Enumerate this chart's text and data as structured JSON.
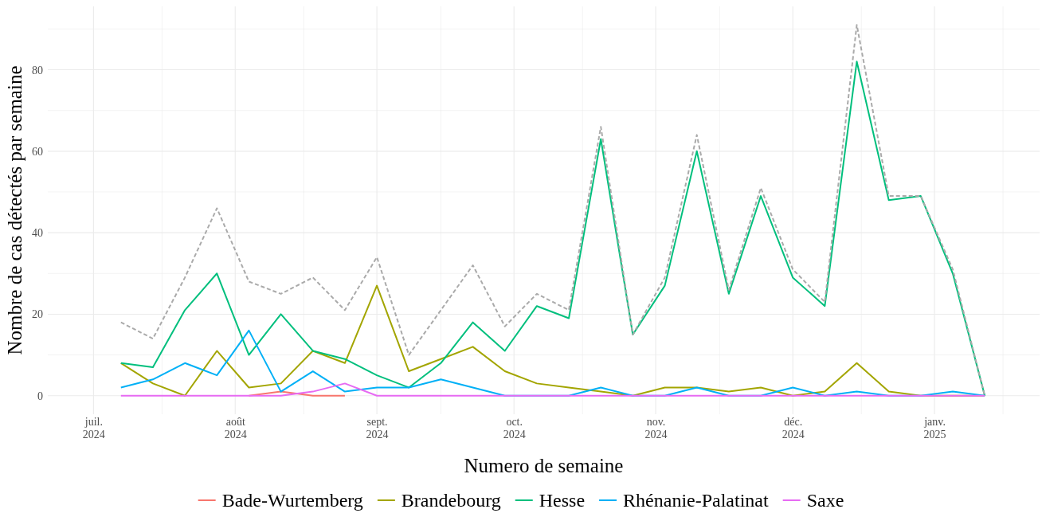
{
  "chart_data": {
    "type": "line",
    "xlabel": "Numero de semaine",
    "ylabel": "Nombre de cas détectés par semaine",
    "x": [
      "2024-07-07",
      "2024-07-14",
      "2024-07-21",
      "2024-07-28",
      "2024-08-04",
      "2024-08-11",
      "2024-08-18",
      "2024-08-25",
      "2024-09-01",
      "2024-09-08",
      "2024-09-15",
      "2024-09-22",
      "2024-09-29",
      "2024-10-06",
      "2024-10-13",
      "2024-10-20",
      "2024-10-27",
      "2024-11-03",
      "2024-11-10",
      "2024-11-17",
      "2024-11-24",
      "2024-12-01",
      "2024-12-08",
      "2024-12-15",
      "2024-12-22",
      "2024-12-29",
      "2025-01-05",
      "2025-01-12"
    ],
    "series": [
      {
        "name": "Bade-Wurtemberg",
        "color": "#f8766d",
        "values": [
          null,
          null,
          null,
          null,
          0,
          1,
          0,
          0,
          null,
          null,
          null,
          null,
          null,
          null,
          null,
          null,
          null,
          null,
          null,
          null,
          null,
          null,
          null,
          null,
          null,
          null,
          null,
          null
        ]
      },
      {
        "name": "Brandebourg",
        "color": "#a3a500",
        "values": [
          8,
          3,
          0,
          11,
          2,
          3,
          11,
          8,
          27,
          6,
          9,
          12,
          6,
          3,
          2,
          1,
          0,
          2,
          2,
          1,
          2,
          0,
          1,
          8,
          1,
          0,
          0,
          0
        ]
      },
      {
        "name": "Hesse",
        "color": "#00bf7d",
        "values": [
          8,
          7,
          21,
          30,
          10,
          20,
          11,
          9,
          5,
          2,
          8,
          18,
          11,
          22,
          19,
          63,
          15,
          27,
          60,
          25,
          49,
          29,
          22,
          82,
          48,
          49,
          30,
          0
        ]
      },
      {
        "name": "Rhénanie-Palatinat",
        "color": "#00b0f6",
        "values": [
          2,
          4,
          8,
          5,
          16,
          1,
          6,
          1,
          2,
          2,
          4,
          2,
          0,
          0,
          0,
          2,
          0,
          0,
          2,
          0,
          0,
          2,
          0,
          1,
          0,
          0,
          1,
          0
        ]
      },
      {
        "name": "Saxe",
        "color": "#e76bf3",
        "values": [
          0,
          0,
          0,
          0,
          0,
          0,
          1,
          3,
          0,
          0,
          0,
          0,
          0,
          0,
          0,
          0,
          0,
          0,
          0,
          0,
          0,
          0,
          0,
          0,
          0,
          0,
          0,
          0
        ]
      },
      {
        "color": "#aaaaaa",
        "line_style": "dashed",
        "values": [
          18,
          14,
          29,
          46,
          28,
          25,
          29,
          21,
          34,
          10,
          21,
          32,
          17,
          25,
          21,
          66,
          15,
          29,
          64,
          26,
          51,
          31,
          23,
          91,
          49,
          49,
          31,
          0
        ]
      }
    ],
    "xlim": [
      "2024-06-21",
      "2025-01-24"
    ],
    "xticks": [
      {
        "value": "2024-07-01",
        "label": "juil.\n2024"
      },
      {
        "value": "2024-07-16",
        "label": null
      },
      {
        "value": "2024-08-01",
        "label": "août\n2024"
      },
      {
        "value": "2024-08-16",
        "label": null
      },
      {
        "value": "2024-09-01",
        "label": "sept.\n2024"
      },
      {
        "value": "2024-09-15",
        "label": null
      },
      {
        "value": "2024-10-01",
        "label": "oct.\n2024"
      },
      {
        "value": "2024-10-16",
        "label": null
      },
      {
        "value": "2024-11-01",
        "label": "nov.\n2024"
      },
      {
        "value": "2024-11-15",
        "label": null
      },
      {
        "value": "2024-12-01",
        "label": "déc.\n2024"
      },
      {
        "value": "2024-12-16",
        "label": null
      },
      {
        "value": "2025-01-01",
        "label": "janv.\n2025"
      },
      {
        "value": "2025-01-16",
        "label": null
      }
    ],
    "ylim": [
      -4.55,
      95.55
    ],
    "yticks": [
      0,
      {
        "value": 10,
        "label": null
      },
      20,
      {
        "value": 30,
        "label": null
      },
      40,
      {
        "value": 50,
        "label": null
      },
      60,
      {
        "value": 70,
        "label": null
      },
      80,
      {
        "value": 90,
        "label": null
      }
    ],
    "grid": true,
    "legend": "bottom",
    "line_style": "solid",
    "marker": "none"
  }
}
